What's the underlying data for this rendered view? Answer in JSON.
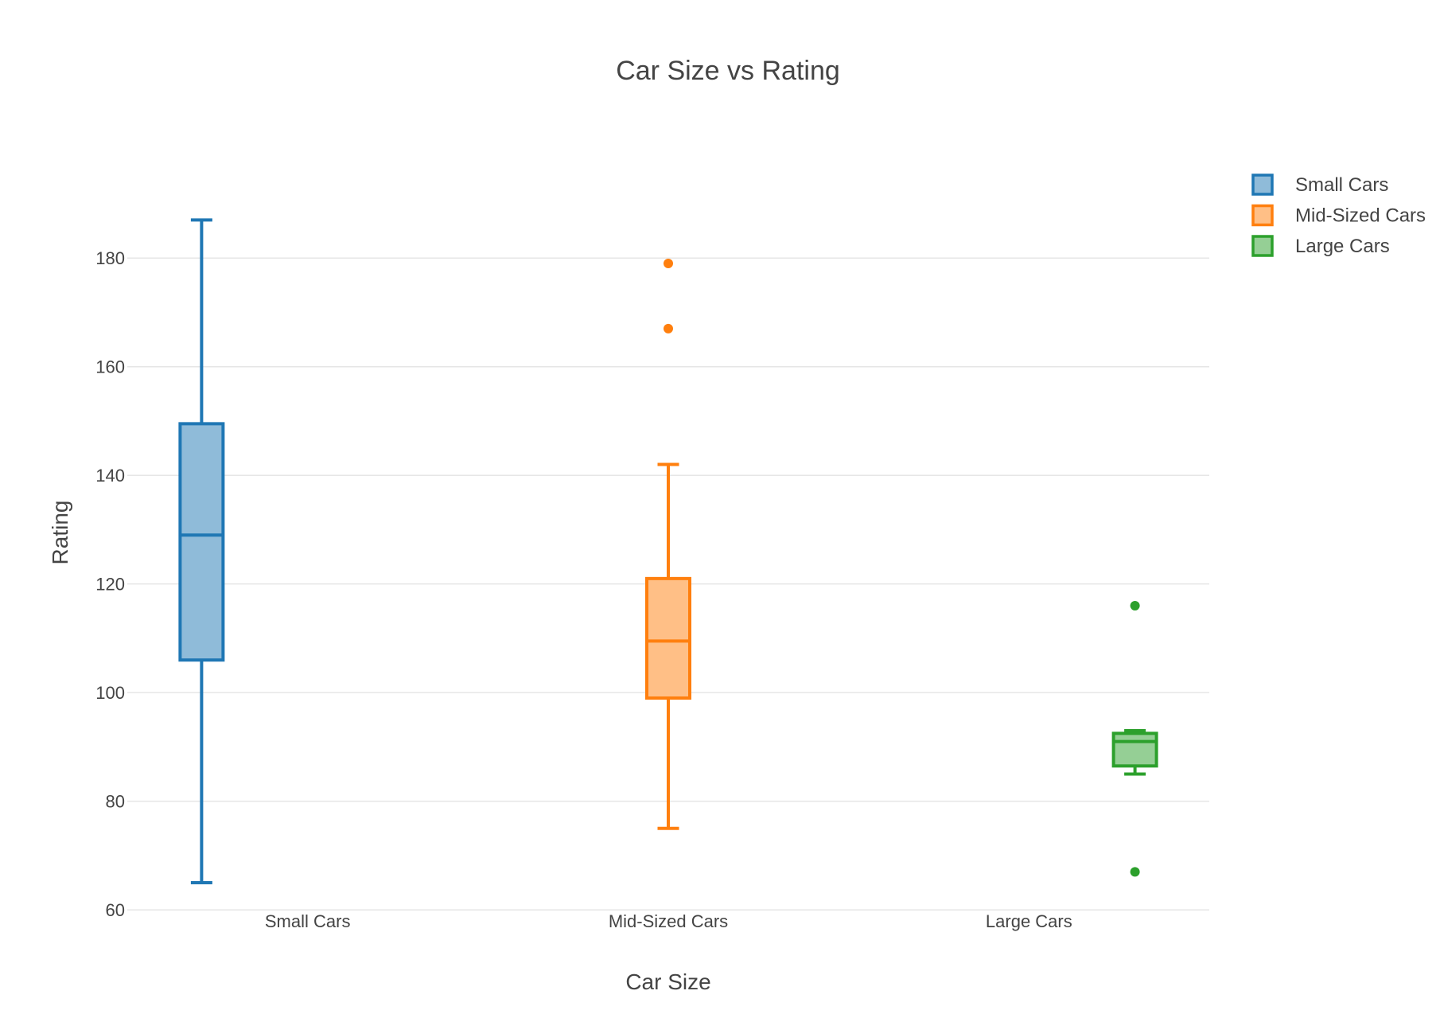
{
  "chart_data": {
    "type": "box",
    "title": "Car Size vs Rating",
    "xlabel": "Car Size",
    "ylabel": "Rating",
    "ylim": [
      59,
      196
    ],
    "yticks": [
      60,
      80,
      100,
      120,
      140,
      160,
      180
    ],
    "categories": [
      "Small Cars",
      "Mid-Sized Cars",
      "Large Cars"
    ],
    "grid": true,
    "legend_position": "top-right",
    "series": [
      {
        "name": "Small Cars",
        "color": "#1f77b4",
        "fill": "#8fbbd9",
        "whisker_low": 65,
        "q1": 106,
        "median": 129,
        "q3": 149.5,
        "whisker_high": 187,
        "outliers": []
      },
      {
        "name": "Mid-Sized Cars",
        "color": "#ff7f0e",
        "fill": "#ffbf86",
        "whisker_low": 75,
        "q1": 99,
        "median": 109.5,
        "q3": 121,
        "whisker_high": 142,
        "outliers": [
          167,
          179
        ]
      },
      {
        "name": "Large Cars",
        "color": "#2ca02c",
        "fill": "#95cf95",
        "whisker_low": 85,
        "q1": 86.5,
        "median": 91,
        "q3": 92.5,
        "whisker_high": 93,
        "outliers": [
          67,
          116
        ]
      }
    ]
  }
}
